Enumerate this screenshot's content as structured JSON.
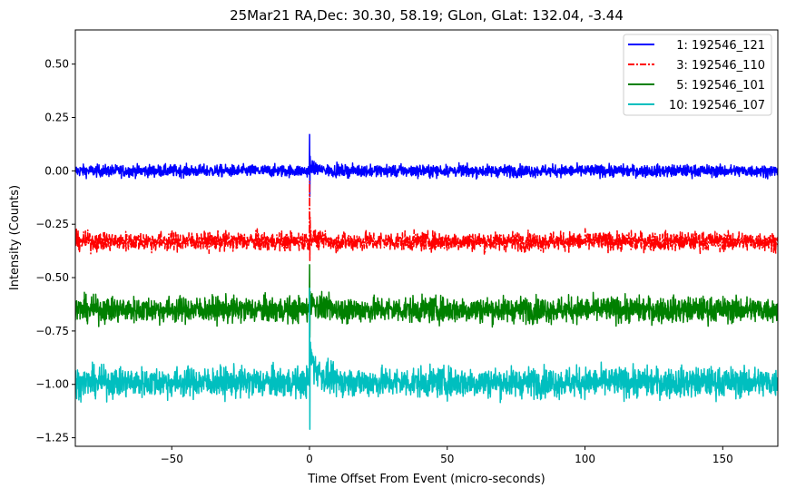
{
  "chart_data": {
    "type": "line",
    "title": "25Mar21 RA,Dec:   30.30,  58.19; GLon, GLat:  132.04,  -3.44",
    "xlabel": "Time Offset From Event (micro-seconds)",
    "ylabel": "Intensity (Counts)",
    "xlim": [
      -85,
      170
    ],
    "ylim": [
      -1.29,
      0.66
    ],
    "xticks": [
      -50,
      0,
      50,
      100,
      150
    ],
    "xtick_labels": [
      "−50",
      "0",
      "50",
      "100",
      "150"
    ],
    "yticks": [
      0.5,
      0.25,
      0.0,
      -0.25,
      -0.5,
      -0.75,
      -1.0,
      -1.25
    ],
    "ytick_labels": [
      "0.50",
      "0.25",
      "0.00",
      "−0.25",
      "−0.50",
      "−0.75",
      "−1.00",
      "−1.25"
    ],
    "grid": false,
    "legend_position": "top-right",
    "event_time": 0,
    "n_samples": 2550,
    "series": [
      {
        "name": "  1: 192546_121",
        "color": "#0000ff",
        "style": "solid",
        "baseline": 0.0,
        "noise": 0.014,
        "spike_max": 0.17,
        "spike_min": -0.12,
        "ring": 0.02
      },
      {
        "name": "  3: 192546_110",
        "color": "#ff0000",
        "style": "dashdot",
        "baseline": -0.33,
        "noise": 0.022,
        "spike_max": -0.05,
        "spike_min": -0.42,
        "ring": 0.03
      },
      {
        "name": "  5: 192546_101",
        "color": "#008000",
        "style": "solid",
        "baseline": -0.65,
        "noise": 0.03,
        "spike_max": -0.44,
        "spike_min": -0.78,
        "ring": 0.05
      },
      {
        "name": "10: 192546_107",
        "color": "#00bfbf",
        "style": "solid",
        "baseline": -0.99,
        "noise": 0.035,
        "spike_max": -0.55,
        "spike_min": -1.21,
        "ring": 0.15
      }
    ]
  }
}
